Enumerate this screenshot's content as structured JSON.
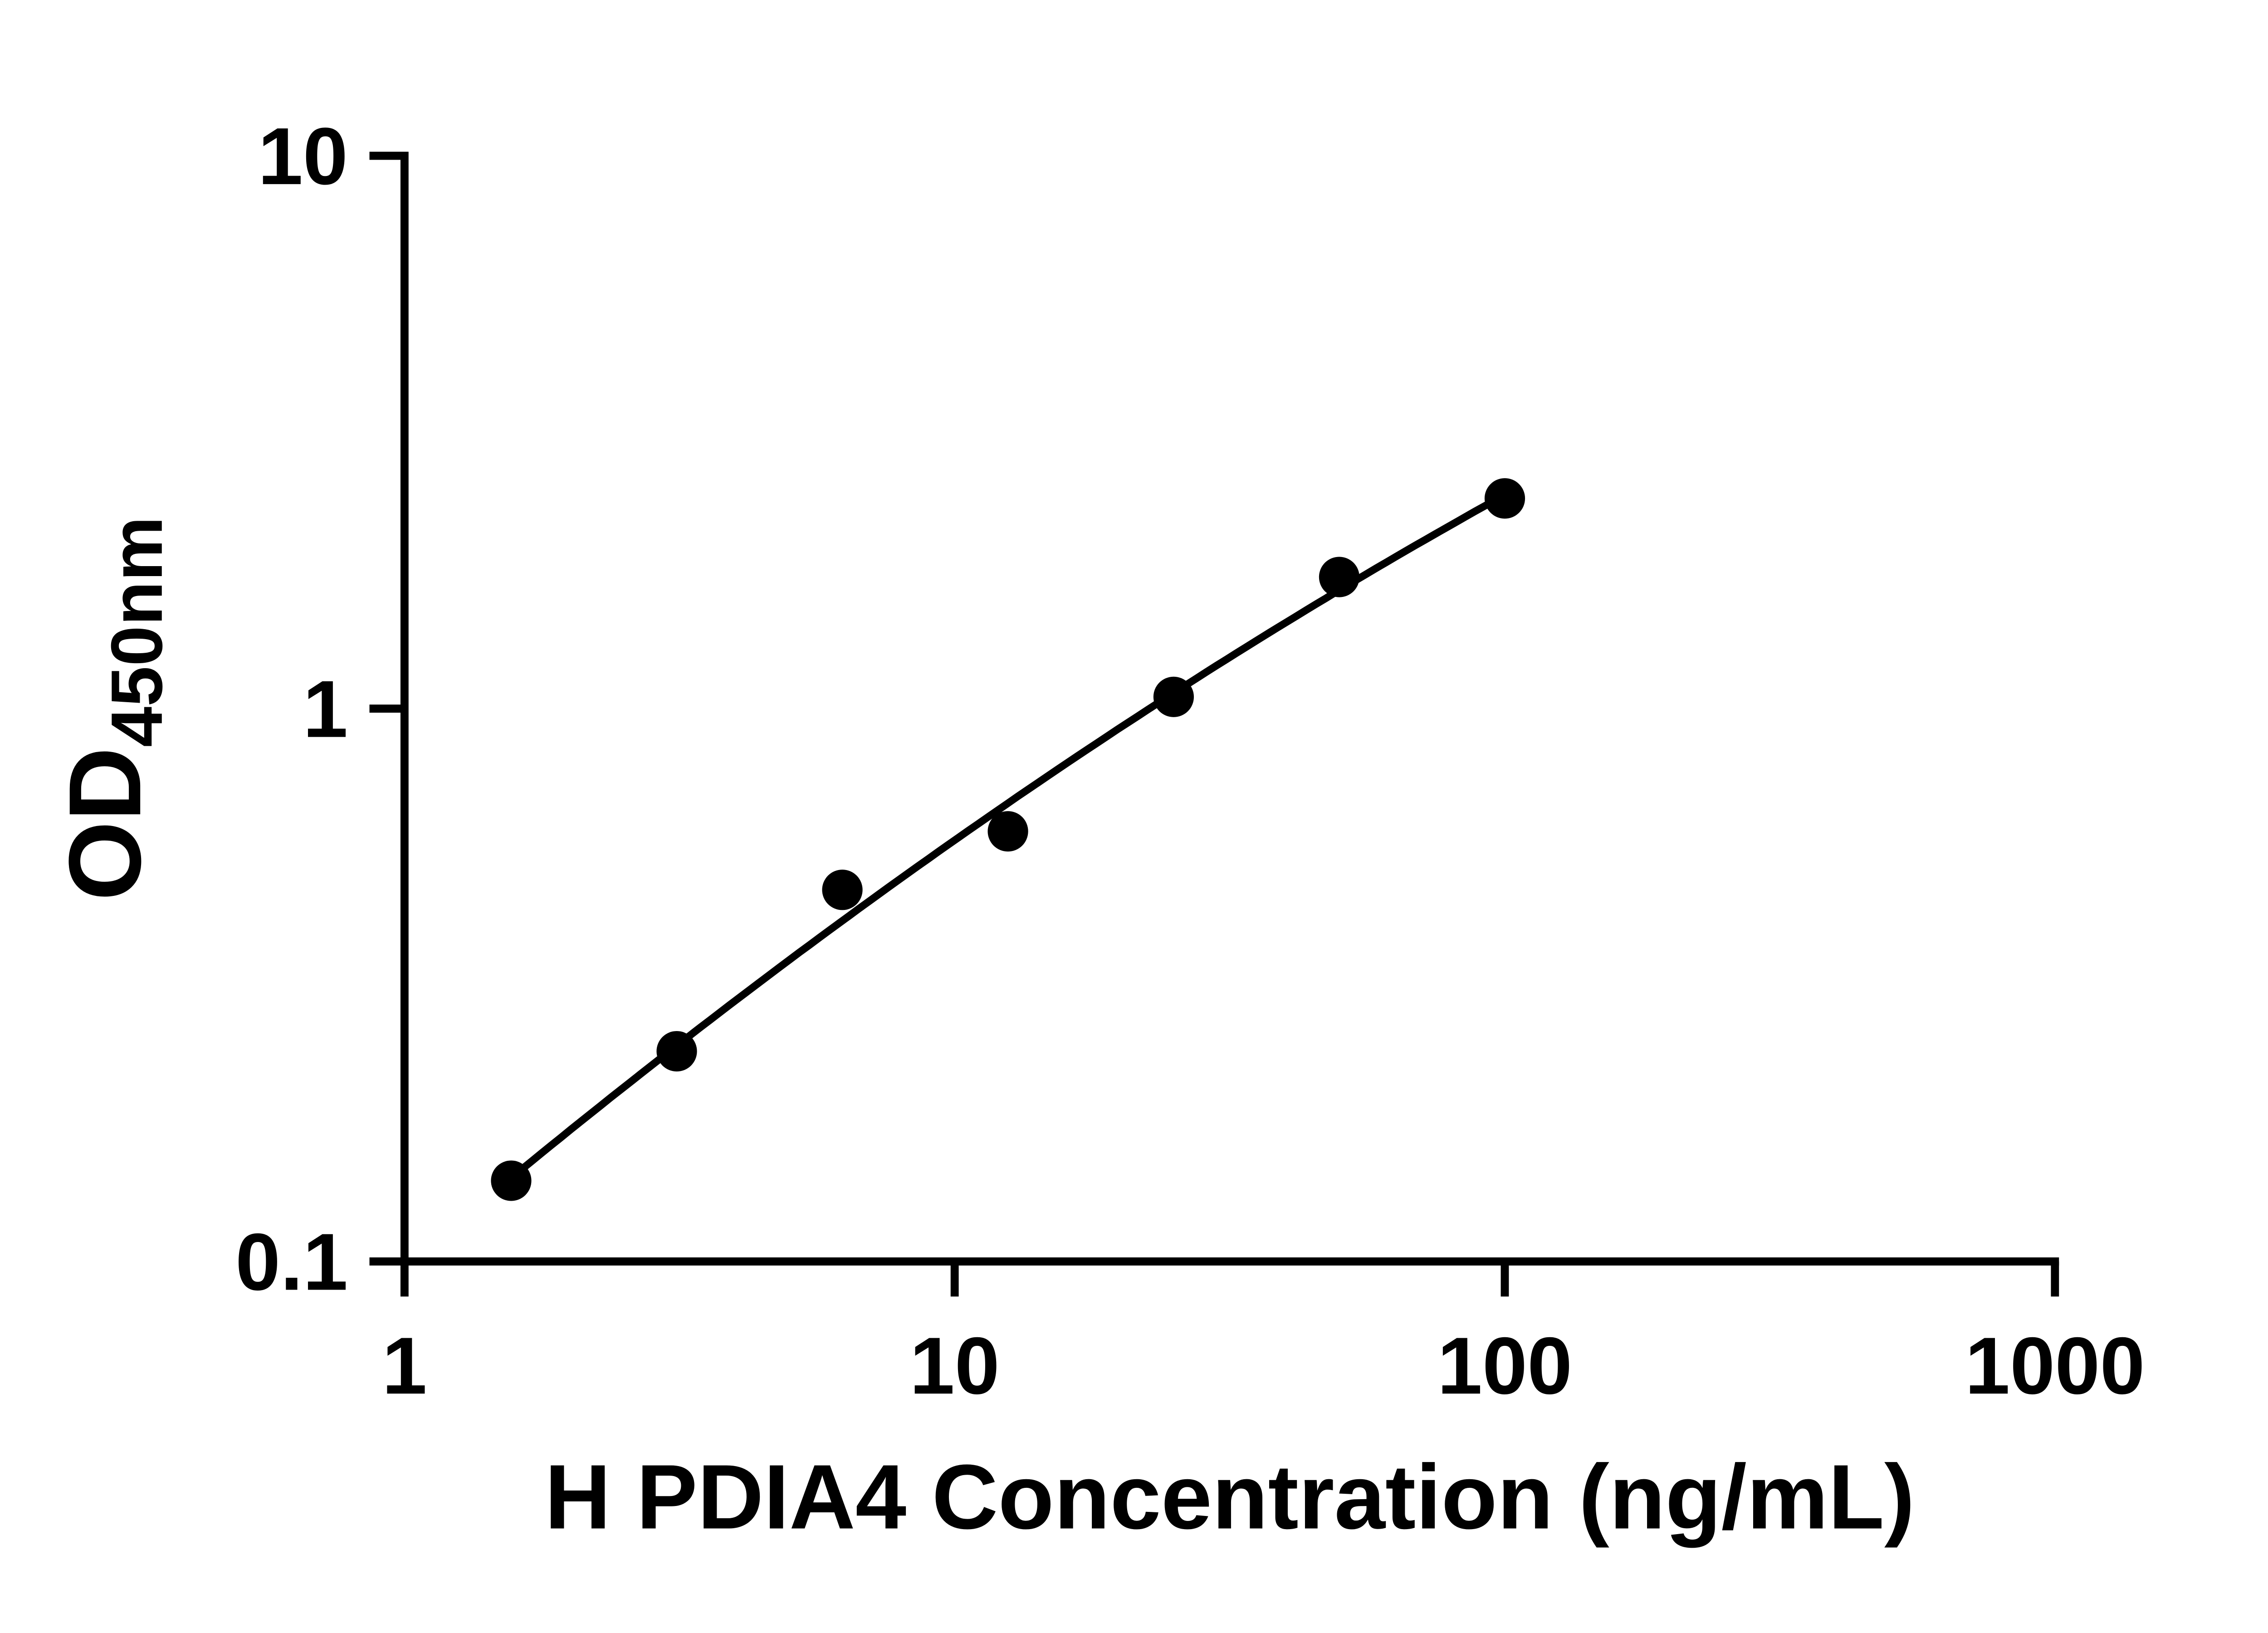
{
  "page": {
    "background": "#ffffff"
  },
  "chart_data": {
    "type": "scatter",
    "title": "",
    "xlabel": "H PDIA4 Concentration (ng/mL)",
    "ylabel_main": "OD",
    "ylabel_sub": "450nm",
    "x_scale": "log",
    "y_scale": "log",
    "xlim": [
      1,
      1000
    ],
    "ylim": [
      0.1,
      10
    ],
    "x_ticks": [
      1,
      10,
      100,
      1000
    ],
    "x_tick_labels": [
      "1",
      "10",
      "100",
      "1000"
    ],
    "y_ticks": [
      0.1,
      1,
      10
    ],
    "y_tick_labels": [
      "0.1",
      "1",
      "10"
    ],
    "grid": false,
    "legend": "none",
    "axis_color": "#000000",
    "marker_color": "#000000",
    "line_color": "#000000",
    "marker_radius": 15,
    "fit": "quadratic-loglog",
    "points": [
      {
        "x": 1.563,
        "y": 0.14
      },
      {
        "x": 3.125,
        "y": 0.24
      },
      {
        "x": 6.25,
        "y": 0.47
      },
      {
        "x": 12.5,
        "y": 0.6
      },
      {
        "x": 25,
        "y": 1.05
      },
      {
        "x": 50,
        "y": 1.73
      },
      {
        "x": 100,
        "y": 2.4
      }
    ]
  }
}
